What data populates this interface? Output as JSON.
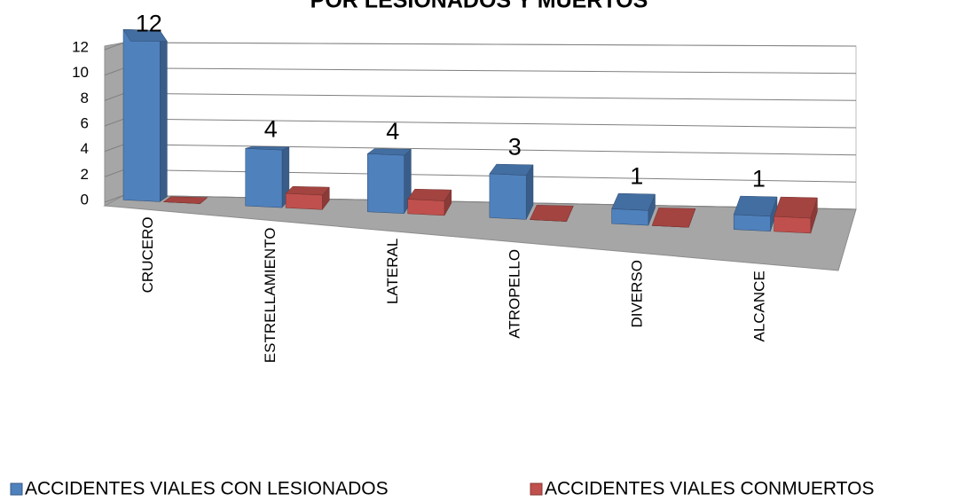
{
  "chart_data": {
    "type": "bar3d",
    "title": "POR LESIONADOS Y MUERTOS",
    "categories": [
      "CRUCERO",
      "ESTRELLAMIENTO",
      "LATERAL",
      "ATROPELLO",
      "DIVERSO",
      "ALCANCE"
    ],
    "series": [
      {
        "name": "ACCIDENTES VIALES CON LESIONADOS",
        "color": "#4f81bd",
        "values": [
          12,
          4,
          4,
          3,
          1,
          1
        ]
      },
      {
        "name": "ACCIDENTES VIALES CONMUERTOS",
        "color": "#c0504d",
        "values": [
          0,
          1,
          1,
          0,
          0,
          1
        ]
      }
    ],
    "data_labels_series": 0,
    "ylim": [
      0,
      12
    ],
    "yticks": [
      0,
      2,
      4,
      6,
      8,
      10,
      12
    ],
    "grid": true
  }
}
